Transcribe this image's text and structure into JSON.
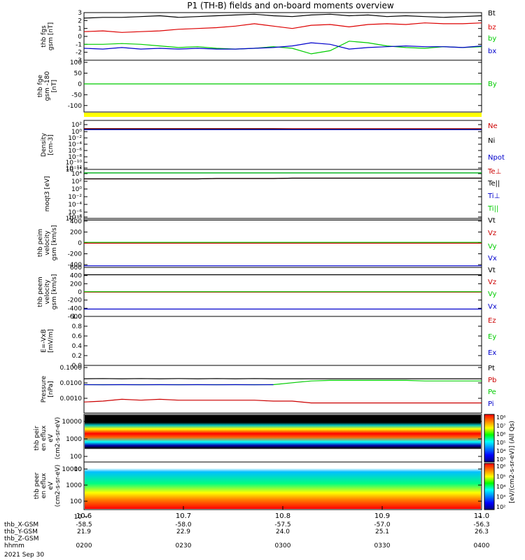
{
  "title": "P1 (TH-B) fields and on-board moments overview",
  "footer": {
    "rows": [
      {
        "label": "thb_X-GSM",
        "values": [
          "-58.5",
          "-58.0",
          "-57.5",
          "-57.0",
          "-56.3"
        ]
      },
      {
        "label": "thb_Y-GSM",
        "values": [
          "21.9",
          "22.9",
          "24.0",
          "25.1",
          "26.3"
        ]
      },
      {
        "label": "thb_Z-GSM",
        "values": [
          "",
          "",
          "",
          "",
          ""
        ]
      },
      {
        "label": "hhmm",
        "values": [
          "0200",
          "0230",
          "0300",
          "0330",
          "0400"
        ]
      }
    ],
    "date": "2021 Sep 30"
  },
  "colorbar": {
    "label": "[eV/(cm2-s-sr-eV)] (All Qs)",
    "upper_ticks": [
      "10⁸",
      "10⁷",
      "10⁶",
      "10⁵",
      "10⁴",
      "10³"
    ],
    "lower_ticks": [
      "10⁶",
      "10⁵",
      "10⁴",
      "10³",
      "10²"
    ],
    "colors": [
      "#ff0000",
      "#ff8000",
      "#ffff00",
      "#00ff00",
      "#00ffff",
      "#0080ff",
      "#0000ff",
      "#000080"
    ]
  },
  "chart_data": [
    {
      "type": "line",
      "panel_id": "fgs",
      "ylabel": "thb fgs gsm [nT]",
      "ylim": [
        -3,
        3
      ],
      "yticks": [
        "3",
        "2",
        "1",
        "0",
        "-1",
        "-2",
        "-3"
      ],
      "x_tick_labels": [
        "10.6",
        "10.7",
        "10.8",
        "10.9",
        "11.0"
      ],
      "series": [
        {
          "name": "Bt",
          "color": "#000000",
          "values": [
            2.3,
            2.4,
            2.4,
            2.5,
            2.6,
            2.4,
            2.5,
            2.6,
            2.7,
            2.8,
            2.6,
            2.5,
            2.7,
            2.8,
            2.6,
            2.7,
            2.5,
            2.6,
            2.5,
            2.4,
            2.5,
            2.6
          ]
        },
        {
          "name": "bz",
          "color": "#dd0000",
          "values": [
            0.6,
            0.7,
            0.5,
            0.6,
            0.7,
            0.9,
            1.0,
            1.1,
            1.3,
            1.6,
            1.3,
            1.0,
            1.4,
            1.5,
            1.2,
            1.5,
            1.6,
            1.5,
            1.7,
            1.6,
            1.6,
            1.7
          ]
        },
        {
          "name": "by",
          "color": "#00cc00",
          "values": [
            -1.0,
            -1.0,
            -0.9,
            -1.0,
            -1.2,
            -1.4,
            -1.3,
            -1.5,
            -1.6,
            -1.5,
            -1.3,
            -1.5,
            -2.2,
            -1.8,
            -0.6,
            -0.8,
            -1.2,
            -1.4,
            -1.5,
            -1.3,
            -1.4,
            -1.3
          ]
        },
        {
          "name": "bx",
          "color": "#0000cc",
          "values": [
            -1.5,
            -1.6,
            -1.4,
            -1.6,
            -1.5,
            -1.6,
            -1.5,
            -1.6,
            -1.6,
            -1.5,
            -1.4,
            -1.2,
            -0.8,
            -1.0,
            -1.6,
            -1.4,
            -1.3,
            -1.2,
            -1.3,
            -1.3,
            -1.4,
            -1.2
          ]
        }
      ]
    },
    {
      "type": "line",
      "panel_id": "fge",
      "ylabel": "thb fge gsm -180 [nT]",
      "ylim": [
        -130,
        110
      ],
      "yticks": [
        "100",
        "50",
        "0",
        "-50",
        "-100"
      ],
      "series": [
        {
          "name": "By",
          "color": "#00cc00",
          "values": [
            0,
            0,
            0,
            0,
            0,
            0,
            0,
            0,
            0,
            0,
            0,
            0,
            0,
            0,
            0,
            0,
            0,
            0,
            0,
            0,
            0,
            0
          ]
        }
      ]
    },
    {
      "type": "line",
      "panel_id": "density",
      "ylabel": "Density [cm-3]",
      "scale": "log",
      "ylim": [
        -14,
        3
      ],
      "yticks": [
        "10²",
        "10⁰",
        "10⁻²",
        "10⁻⁴",
        "10⁻⁶",
        "10⁻⁸",
        "10⁻¹⁰",
        "10⁻¹²",
        "10⁻¹⁴"
      ],
      "series": [
        {
          "name": "Ne",
          "color": "#cc0000",
          "values": [
            0.15,
            0.15,
            0.15,
            0.15,
            0.15,
            0.15,
            0.15,
            0.15,
            0.15,
            0.15,
            0.15,
            0.1,
            0.1,
            0.1,
            0.1,
            0.1,
            0.1,
            0.1,
            0.1,
            0.1,
            0.1,
            0.1
          ]
        },
        {
          "name": "Ni",
          "color": "#000000",
          "values": [
            0.0,
            0.0,
            0.0,
            0.0,
            0.0,
            0.0,
            0.0,
            0.0,
            0.0,
            0.0,
            0.0,
            -0.05,
            -0.05,
            -0.05,
            -0.05,
            -0.05,
            -0.05,
            -0.05,
            -0.05,
            -0.05,
            -0.05,
            -0.05
          ]
        },
        {
          "name": "Npot",
          "color": "#0000cc",
          "values": [
            -0.2,
            -0.2,
            -0.2,
            -0.2,
            -0.2,
            -0.2,
            -0.2,
            -0.2,
            -0.2,
            -0.2,
            -0.2,
            -0.2,
            -0.2,
            -0.2,
            -0.2,
            -0.2,
            -0.2,
            -0.2,
            -0.2,
            -0.2,
            -0.2,
            -0.2
          ]
        }
      ]
    },
    {
      "type": "line",
      "panel_id": "temperature",
      "ylabel": "moqt3 [eV]",
      "scale": "log",
      "ylim": [
        -10,
        4
      ],
      "yticks": [
        "10⁴",
        "10²",
        "10⁰",
        "10⁻²",
        "10⁻⁴",
        "10⁻⁶",
        "10⁻⁸",
        "10⁻¹⁰"
      ],
      "series": [
        {
          "name": "Te⊥",
          "color": "#cc0000",
          "values": [
            1.3,
            1.3,
            1.3,
            1.3,
            1.3,
            1.3,
            1.3,
            1.4,
            1.4,
            1.4,
            1.4,
            1.5,
            1.5,
            1.5,
            1.5,
            1.5,
            1.5,
            1.5,
            1.5,
            1.5,
            1.5,
            1.5
          ]
        },
        {
          "name": "Te||",
          "color": "#000000",
          "values": [
            1.3,
            1.3,
            1.3,
            1.3,
            1.3,
            1.3,
            1.3,
            1.4,
            1.4,
            1.4,
            1.4,
            1.5,
            1.5,
            1.5,
            1.5,
            1.5,
            1.5,
            1.5,
            1.5,
            1.5,
            1.5,
            1.5
          ]
        },
        {
          "name": "Ti⊥",
          "color": "#0000cc",
          "values": [
            3.0,
            3.0,
            3.0,
            3.0,
            3.0,
            3.0,
            3.0,
            3.0,
            3.0,
            3.0,
            3.0,
            3.0,
            3.0,
            3.0,
            3.0,
            3.0,
            3.0,
            3.0,
            3.0,
            3.0,
            3.0,
            3.0
          ]
        },
        {
          "name": "Ti||",
          "color": "#00cc00",
          "values": [
            3.0,
            3.0,
            3.0,
            3.0,
            3.0,
            3.0,
            3.0,
            3.0,
            3.0,
            3.0,
            3.0,
            3.0,
            3.0,
            3.0,
            3.0,
            3.0,
            3.0,
            3.0,
            3.0,
            3.0,
            3.0,
            3.0
          ]
        }
      ]
    },
    {
      "type": "line",
      "panel_id": "ion-velocity",
      "ylabel": "thb peim velocity gsm [km/s]",
      "ylim": [
        -450,
        450
      ],
      "yticks": [
        "400",
        "200",
        "0",
        "-200",
        "-400"
      ],
      "series": [
        {
          "name": "Vt",
          "color": "#000000",
          "values": [
            420,
            420,
            420,
            420,
            420,
            420,
            420,
            420,
            420,
            420,
            420,
            420,
            420,
            420,
            420,
            420,
            420,
            420,
            420,
            420,
            420,
            420
          ]
        },
        {
          "name": "Vz",
          "color": "#cc0000",
          "values": [
            -5,
            -5,
            -5,
            -5,
            -5,
            -5,
            -5,
            -5,
            -5,
            -5,
            -5,
            -5,
            -5,
            -5,
            -5,
            -5,
            -5,
            -5,
            -5,
            -5,
            -5,
            -5
          ]
        },
        {
          "name": "Vy",
          "color": "#00cc00",
          "values": [
            10,
            10,
            10,
            10,
            10,
            10,
            10,
            10,
            10,
            10,
            10,
            10,
            10,
            10,
            10,
            10,
            10,
            10,
            10,
            10,
            10,
            10
          ]
        },
        {
          "name": "Vx",
          "color": "#0000cc",
          "values": [
            -420,
            -420,
            -420,
            -420,
            -420,
            -420,
            -420,
            -420,
            -420,
            -420,
            -420,
            -420,
            -420,
            -420,
            -420,
            -420,
            -420,
            -420,
            -420,
            -420,
            -420,
            -420
          ]
        }
      ]
    },
    {
      "type": "line",
      "panel_id": "electron-velocity",
      "ylabel": "thb peem velocity gsm [km/s]",
      "ylim": [
        -600,
        600
      ],
      "yticks": [
        "600",
        "400",
        "200",
        "0",
        "-200",
        "-400",
        "-600"
      ],
      "series": [
        {
          "name": "Vt",
          "color": "#000000",
          "values": [
            420,
            420,
            420,
            420,
            420,
            420,
            420,
            420,
            420,
            420,
            420,
            420,
            420,
            420,
            420,
            420,
            420,
            420,
            420,
            420,
            420,
            420
          ]
        },
        {
          "name": "Vz",
          "color": "#cc0000",
          "values": [
            -5,
            -5,
            -5,
            -5,
            -5,
            -5,
            -5,
            -5,
            -5,
            -5,
            -5,
            -5,
            -5,
            -5,
            -5,
            -5,
            -5,
            -5,
            -5,
            -5,
            -5,
            -5
          ]
        },
        {
          "name": "Vy",
          "color": "#00cc00",
          "values": [
            5,
            5,
            5,
            5,
            5,
            5,
            5,
            5,
            5,
            5,
            5,
            5,
            5,
            5,
            5,
            5,
            5,
            5,
            5,
            5,
            5,
            5
          ]
        },
        {
          "name": "Vx",
          "color": "#0000cc",
          "values": [
            -420,
            -420,
            -420,
            -420,
            -420,
            -420,
            -420,
            -420,
            -420,
            -420,
            -420,
            -420,
            -420,
            -420,
            -420,
            -420,
            -420,
            -420,
            -420,
            -420,
            -420,
            -420
          ]
        }
      ]
    },
    {
      "type": "line",
      "panel_id": "e-field",
      "ylabel": "E=-VxB [mV/m]",
      "ylim": [
        0,
        1
      ],
      "yticks": [
        "1.0",
        "0.8",
        "0.6",
        "0.4",
        "0.2",
        "0.0"
      ],
      "series": [
        {
          "name": "Ez",
          "color": "#cc0000",
          "values": []
        },
        {
          "name": "Ey",
          "color": "#00cc00",
          "values": []
        },
        {
          "name": "Ex",
          "color": "#0000cc",
          "values": []
        }
      ]
    },
    {
      "type": "line",
      "panel_id": "pressure",
      "ylabel": "Pressure [nPa]",
      "scale": "log",
      "ylim": [
        -3.5,
        -0.9
      ],
      "yticks": [
        "0.1000",
        "0.0100",
        "0.0010"
      ],
      "series": [
        {
          "name": "Pt",
          "color": "#000000",
          "values": [
            -1.63,
            -1.62,
            -1.63,
            -1.62,
            -1.63,
            -1.62,
            -1.63,
            -1.62,
            -1.63,
            -1.62,
            -1.63,
            -1.63,
            -1.63,
            -1.63,
            -1.63,
            -1.63,
            -1.63,
            -1.63,
            -1.63,
            -1.63,
            -1.63,
            -1.63
          ]
        },
        {
          "name": "Pb",
          "color": "#cc0000",
          "values": [
            -2.9,
            -2.85,
            -2.75,
            -2.8,
            -2.75,
            -2.8,
            -2.8,
            -2.8,
            -2.8,
            -2.8,
            -2.85,
            -2.85,
            -2.95,
            -2.95,
            -2.95,
            -2.95,
            -2.95,
            -2.95,
            -2.95,
            -2.95,
            -2.95,
            -2.95
          ]
        },
        {
          "name": "Pe",
          "color": "#00cc00",
          "values": [
            -1.95,
            -1.95,
            -1.95,
            -1.95,
            -1.95,
            -1.95,
            -1.95,
            -1.95,
            -1.95,
            -1.95,
            -1.95,
            -1.85,
            -1.75,
            -1.72,
            -1.72,
            -1.72,
            -1.72,
            -1.72,
            -1.75,
            -1.75,
            -1.75,
            -1.75
          ]
        },
        {
          "name": "Pi",
          "color": "#0000cc",
          "values": [
            -1.95,
            -1.96,
            -1.95,
            -1.96,
            -1.95,
            -1.96,
            -1.95,
            -1.96,
            -1.95,
            -1.96,
            -1.95,
            null,
            null,
            null,
            null,
            null,
            null,
            null,
            null,
            null,
            null,
            null
          ]
        }
      ]
    },
    {
      "type": "heatmap",
      "panel_id": "ion-spectrogram",
      "ylabel": "thb peir en eflux eV (cm2-s-sr-eV)",
      "scale": "log",
      "ylim": [
        5,
        20000
      ],
      "yticks": [
        "10000",
        "1000",
        "100",
        "10"
      ]
    },
    {
      "type": "heatmap",
      "panel_id": "electron-spectrogram",
      "ylabel": "thb peer en eflux eV (cm2-s-sr-eV)",
      "scale": "log",
      "ylim": [
        5,
        20000
      ],
      "yticks": [
        "10000",
        "1000",
        "100",
        "10"
      ]
    }
  ]
}
